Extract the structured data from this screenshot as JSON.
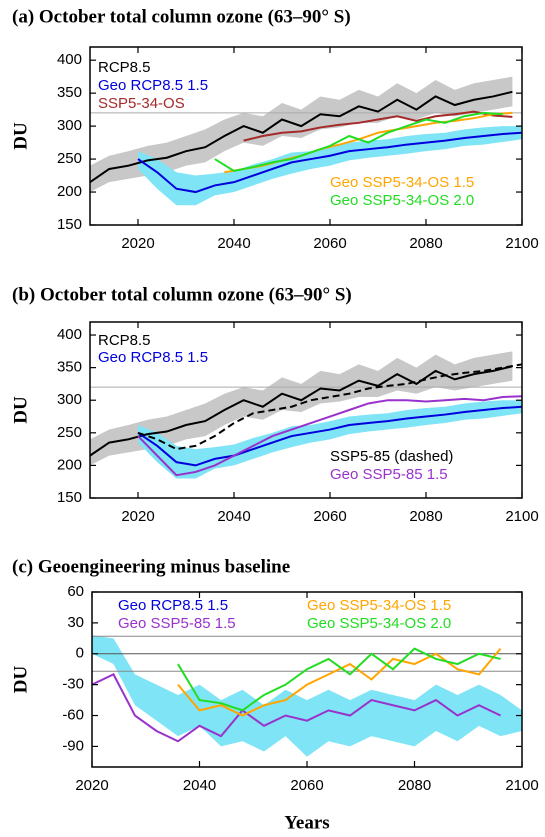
{
  "chart_data": [
    {
      "type": "line",
      "title": "(a) October total column ozone (63–90° S)",
      "ylabel": "DU",
      "xlim": [
        2010,
        2100
      ],
      "ylim": [
        150,
        420
      ],
      "xticks": [
        2020,
        2040,
        2060,
        2080,
        2100
      ],
      "yticks": [
        150,
        200,
        250,
        300,
        350,
        400
      ],
      "hlines": [
        {
          "value": 320,
          "color": "#aaaaaa"
        }
      ],
      "series": [
        {
          "name": "RCP8.5",
          "color": "#000000",
          "x": [
            2010,
            2014,
            2018,
            2022,
            2026,
            2030,
            2034,
            2038,
            2042,
            2046,
            2050,
            2054,
            2058,
            2062,
            2066,
            2070,
            2074,
            2078,
            2082,
            2086,
            2090,
            2094,
            2098
          ],
          "values": [
            215,
            235,
            240,
            248,
            252,
            262,
            268,
            285,
            300,
            290,
            310,
            300,
            318,
            315,
            330,
            322,
            340,
            325,
            345,
            332,
            340,
            345,
            352
          ],
          "band": {
            "color": "#c8c8c8",
            "lower": [
              200,
              215,
              220,
              225,
              230,
              240,
              245,
              262,
              275,
              270,
              285,
              282,
              295,
              298,
              305,
              305,
              315,
              310,
              320,
              315,
              320,
              325,
              330
            ],
            "upper": [
              240,
              255,
              262,
              270,
              275,
              285,
              295,
              310,
              320,
              315,
              335,
              325,
              345,
              340,
              355,
              345,
              365,
              350,
              370,
              355,
              365,
              370,
              375
            ]
          }
        },
        {
          "name": "Geo RCP8.5 1.5",
          "color": "#0000dd",
          "x": [
            2020,
            2024,
            2028,
            2032,
            2036,
            2040,
            2044,
            2048,
            2052,
            2056,
            2060,
            2064,
            2068,
            2072,
            2076,
            2080,
            2084,
            2088,
            2092,
            2096,
            2100
          ],
          "values": [
            250,
            230,
            205,
            200,
            210,
            215,
            225,
            235,
            245,
            250,
            255,
            262,
            265,
            268,
            272,
            275,
            278,
            282,
            285,
            288,
            290
          ],
          "band": {
            "color": "#7fe4f5",
            "lower": [
              235,
              205,
              180,
              180,
              195,
              200,
              210,
              220,
              228,
              235,
              240,
              248,
              252,
              255,
              258,
              262,
              265,
              270,
              272,
              276,
              280
            ],
            "upper": [
              262,
              250,
              230,
              225,
              228,
              232,
              242,
              250,
              260,
              262,
              268,
              275,
              278,
              280,
              285,
              288,
              290,
              295,
              298,
              300,
              300
            ]
          }
        },
        {
          "name": "SSP5-34-OS",
          "color": "#a52a2a",
          "x": [
            2042,
            2046,
            2050,
            2054,
            2058,
            2062,
            2066,
            2070,
            2074,
            2078,
            2082,
            2086,
            2090,
            2094,
            2098
          ],
          "values": [
            278,
            285,
            290,
            292,
            298,
            302,
            305,
            310,
            315,
            308,
            315,
            318,
            322,
            316,
            314
          ]
        },
        {
          "name": "Geo SSP5-34-OS 1.5",
          "color": "#ffa500",
          "x": [
            2038,
            2042,
            2046,
            2050,
            2054,
            2058,
            2062,
            2066,
            2070,
            2074,
            2078,
            2082,
            2086,
            2090,
            2094,
            2098
          ],
          "values": [
            230,
            235,
            240,
            248,
            255,
            265,
            272,
            280,
            290,
            295,
            300,
            305,
            308,
            312,
            318,
            320
          ]
        },
        {
          "name": "Geo SSP5-34-OS 2.0",
          "color": "#22dd22",
          "x": [
            2036,
            2040,
            2044,
            2048,
            2052,
            2056,
            2060,
            2064,
            2068,
            2072,
            2076,
            2080,
            2084,
            2088,
            2092,
            2096
          ],
          "values": [
            250,
            232,
            238,
            245,
            250,
            260,
            270,
            285,
            275,
            290,
            300,
            310,
            305,
            315,
            320,
            318
          ]
        }
      ]
    },
    {
      "type": "line",
      "title": "(b) October total column ozone (63–90° S)",
      "ylabel": "DU",
      "xlim": [
        2010,
        2100
      ],
      "ylim": [
        150,
        420
      ],
      "xticks": [
        2020,
        2040,
        2060,
        2080,
        2100
      ],
      "yticks": [
        150,
        200,
        250,
        300,
        350,
        400
      ],
      "hlines": [
        {
          "value": 320,
          "color": "#aaaaaa"
        }
      ],
      "series": [
        {
          "name": "RCP8.5",
          "color": "#000000",
          "x": [
            2010,
            2014,
            2018,
            2022,
            2026,
            2030,
            2034,
            2038,
            2042,
            2046,
            2050,
            2054,
            2058,
            2062,
            2066,
            2070,
            2074,
            2078,
            2082,
            2086,
            2090,
            2094,
            2098
          ],
          "values": [
            215,
            235,
            240,
            248,
            252,
            262,
            268,
            285,
            300,
            290,
            310,
            300,
            318,
            315,
            330,
            322,
            340,
            325,
            345,
            332,
            340,
            345,
            352
          ],
          "band": {
            "color": "#c8c8c8",
            "lower": [
              200,
              215,
              220,
              225,
              230,
              240,
              245,
              262,
              275,
              270,
              285,
              282,
              295,
              298,
              305,
              305,
              315,
              310,
              320,
              315,
              320,
              325,
              330
            ],
            "upper": [
              240,
              255,
              262,
              270,
              275,
              285,
              295,
              310,
              320,
              315,
              335,
              325,
              345,
              340,
              355,
              345,
              365,
              350,
              370,
              355,
              365,
              370,
              375
            ]
          }
        },
        {
          "name": "Geo RCP8.5 1.5",
          "color": "#0000dd",
          "x": [
            2020,
            2024,
            2028,
            2032,
            2036,
            2040,
            2044,
            2048,
            2052,
            2056,
            2060,
            2064,
            2068,
            2072,
            2076,
            2080,
            2084,
            2088,
            2092,
            2096,
            2100
          ],
          "values": [
            250,
            230,
            205,
            200,
            210,
            215,
            225,
            235,
            245,
            250,
            255,
            262,
            265,
            268,
            272,
            275,
            278,
            282,
            285,
            288,
            290
          ],
          "band": {
            "color": "#7fe4f5",
            "lower": [
              235,
              205,
              180,
              180,
              195,
              200,
              210,
              220,
              228,
              235,
              240,
              248,
              252,
              255,
              258,
              262,
              265,
              270,
              272,
              276,
              280
            ],
            "upper": [
              262,
              250,
              230,
              225,
              228,
              232,
              242,
              250,
              260,
              262,
              268,
              275,
              278,
              280,
              285,
              288,
              290,
              295,
              298,
              300,
              300
            ]
          }
        },
        {
          "name": "SSP5-85 (dashed)",
          "color": "#000000",
          "dashed": true,
          "x": [
            2020,
            2024,
            2028,
            2032,
            2036,
            2040,
            2044,
            2048,
            2052,
            2056,
            2060,
            2064,
            2068,
            2072,
            2076,
            2080,
            2084,
            2088,
            2092,
            2096,
            2100
          ],
          "values": [
            250,
            240,
            225,
            230,
            245,
            265,
            280,
            285,
            290,
            300,
            305,
            310,
            318,
            322,
            325,
            332,
            338,
            342,
            345,
            350,
            355
          ]
        },
        {
          "name": "Geo SSP5-85 1.5",
          "color": "#9932cc",
          "x": [
            2020,
            2024,
            2028,
            2032,
            2036,
            2040,
            2044,
            2048,
            2052,
            2056,
            2060,
            2064,
            2068,
            2072,
            2076,
            2080,
            2084,
            2088,
            2092,
            2096,
            2100
          ],
          "values": [
            245,
            215,
            185,
            190,
            200,
            215,
            230,
            245,
            255,
            265,
            275,
            285,
            295,
            300,
            300,
            298,
            300,
            302,
            300,
            305,
            306
          ]
        }
      ]
    },
    {
      "type": "line",
      "title": "(c) Geoengineering minus baseline",
      "ylabel": "DU",
      "xlabel": "Years",
      "xlim": [
        2020,
        2100
      ],
      "ylim": [
        -110,
        60
      ],
      "xticks": [
        2020,
        2040,
        2060,
        2080,
        2100
      ],
      "yticks": [
        -90,
        -60,
        -30,
        0,
        30,
        60
      ],
      "hlines": [
        {
          "value": 0,
          "color": "#555555"
        },
        {
          "value": 17,
          "color": "#888888"
        },
        {
          "value": -17,
          "color": "#888888"
        }
      ],
      "series": [
        {
          "name": "Geo RCP8.5 1.5",
          "color": "#0000dd",
          "x": [
            2020,
            2024,
            2028,
            2032,
            2036,
            2040,
            2044,
            2048,
            2052,
            2056,
            2060,
            2064,
            2068,
            2072,
            2076,
            2080,
            2084,
            2088,
            2092,
            2096,
            2100
          ],
          "band": {
            "color": "#7fe4f5",
            "lower": [
              0,
              -10,
              -50,
              -65,
              -80,
              -70,
              -90,
              -85,
              -95,
              -80,
              -100,
              -85,
              -90,
              -80,
              -85,
              -90,
              -75,
              -85,
              -70,
              -80,
              -75
            ],
            "upper": [
              18,
              15,
              -20,
              -30,
              -40,
              -30,
              -45,
              -35,
              -50,
              -35,
              -45,
              -35,
              -45,
              -35,
              -40,
              -45,
              -30,
              -40,
              -30,
              -40,
              -55
            ]
          }
        },
        {
          "name": "Geo SSP5-85 1.5",
          "color": "#9932cc",
          "x": [
            2020,
            2024,
            2028,
            2032,
            2036,
            2040,
            2044,
            2048,
            2052,
            2056,
            2060,
            2064,
            2068,
            2072,
            2076,
            2080,
            2084,
            2088,
            2092,
            2096
          ],
          "values": [
            -30,
            -20,
            -60,
            -75,
            -85,
            -70,
            -80,
            -55,
            -70,
            -60,
            -65,
            -55,
            -60,
            -45,
            -50,
            -55,
            -45,
            -60,
            -50,
            -60
          ]
        },
        {
          "name": "Geo SSP5-34-OS 1.5",
          "color": "#ffa500",
          "x": [
            2036,
            2040,
            2044,
            2048,
            2052,
            2056,
            2060,
            2064,
            2068,
            2072,
            2076,
            2080,
            2084,
            2088,
            2092,
            2096
          ],
          "values": [
            -30,
            -55,
            -50,
            -60,
            -50,
            -45,
            -30,
            -20,
            -10,
            -25,
            -5,
            -10,
            0,
            -15,
            -20,
            5
          ]
        },
        {
          "name": "Geo SSP5-34-OS 2.0",
          "color": "#22dd22",
          "x": [
            2036,
            2040,
            2044,
            2048,
            2052,
            2056,
            2060,
            2064,
            2068,
            2072,
            2076,
            2080,
            2084,
            2088,
            2092,
            2096
          ],
          "values": [
            -10,
            -45,
            -48,
            -55,
            -40,
            -30,
            -15,
            -5,
            -20,
            0,
            -15,
            5,
            -5,
            -10,
            0,
            -5
          ]
        }
      ]
    }
  ]
}
